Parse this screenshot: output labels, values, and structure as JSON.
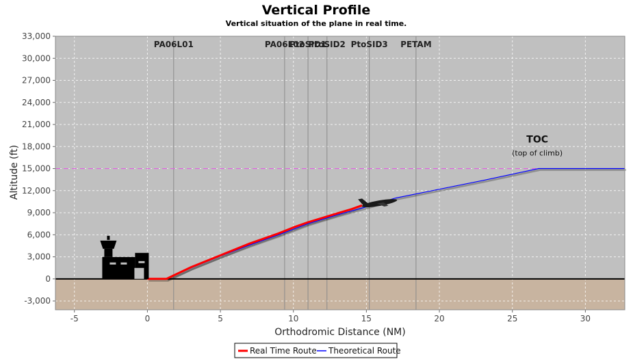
{
  "chart_data": {
    "type": "line",
    "title": "Vertical Profile",
    "subtitle": "Vertical situation of the plane in real time.",
    "xlabel": "Orthodromic Distance (NM)",
    "ylabel": "Altitude (ft)",
    "xlim": [
      -6.3,
      32.7
    ],
    "ylim": [
      -4200,
      33000
    ],
    "x_ticks": [
      -5,
      0,
      5,
      10,
      15,
      20,
      25,
      30
    ],
    "y_ticks": [
      -3000,
      0,
      3000,
      6000,
      9000,
      12000,
      15000,
      18000,
      21000,
      24000,
      27000,
      30000,
      33000
    ],
    "grid": true,
    "legend_position": "bottom-center",
    "colors": {
      "sky": "#c0c0c0",
      "ground": "#c8b4a0",
      "real_route": "#ff0000",
      "theoretical_route": "#0000ff",
      "target_altitude": "#e060e0",
      "waypoint_line": "#8a8a8a"
    },
    "series": [
      {
        "name": "Real Time Route",
        "color": "#ff0000",
        "x": [
          0.0,
          1.3,
          3.0,
          5.0,
          7.0,
          9.0,
          10.0,
          11.0,
          12.0,
          13.0,
          14.0,
          14.7
        ],
        "y": [
          0,
          0,
          1600,
          3200,
          4800,
          6200,
          7000,
          7700,
          8300,
          8900,
          9500,
          10000
        ]
      },
      {
        "name": "Theoretical Route",
        "color": "#0000ff",
        "x": [
          1.3,
          3.0,
          5.0,
          7.0,
          9.0,
          11.0,
          13.0,
          15.0,
          17.0,
          20.0,
          23.0,
          26.8,
          32.7
        ],
        "y": [
          0,
          1500,
          3100,
          4600,
          6000,
          7500,
          8700,
          9800,
          11000,
          12200,
          13400,
          15000,
          15000
        ]
      }
    ],
    "target_altitude": 15000,
    "waypoints": [
      {
        "name": "PA06L01",
        "x": 1.8
      },
      {
        "name": "PA06L02",
        "x": 9.4
      },
      {
        "name": "PtoSID1",
        "x": 11.0
      },
      {
        "name": "PtoSID2",
        "x": 12.3
      },
      {
        "name": "PtoSID3",
        "x": 15.2
      },
      {
        "name": "PETAM",
        "x": 18.4
      }
    ],
    "toc": {
      "label": "TOC",
      "sublabel": "(top of climb)",
      "x": 26.8,
      "y": 15000
    },
    "aircraft": {
      "x": 15.9,
      "y": 10300
    },
    "airport": {
      "x": -1.5,
      "y": 0
    },
    "legend": [
      {
        "name": "Real Time Route",
        "color": "#ff0000"
      },
      {
        "name": "Theoretical Route",
        "color": "#0000ff"
      }
    ]
  }
}
